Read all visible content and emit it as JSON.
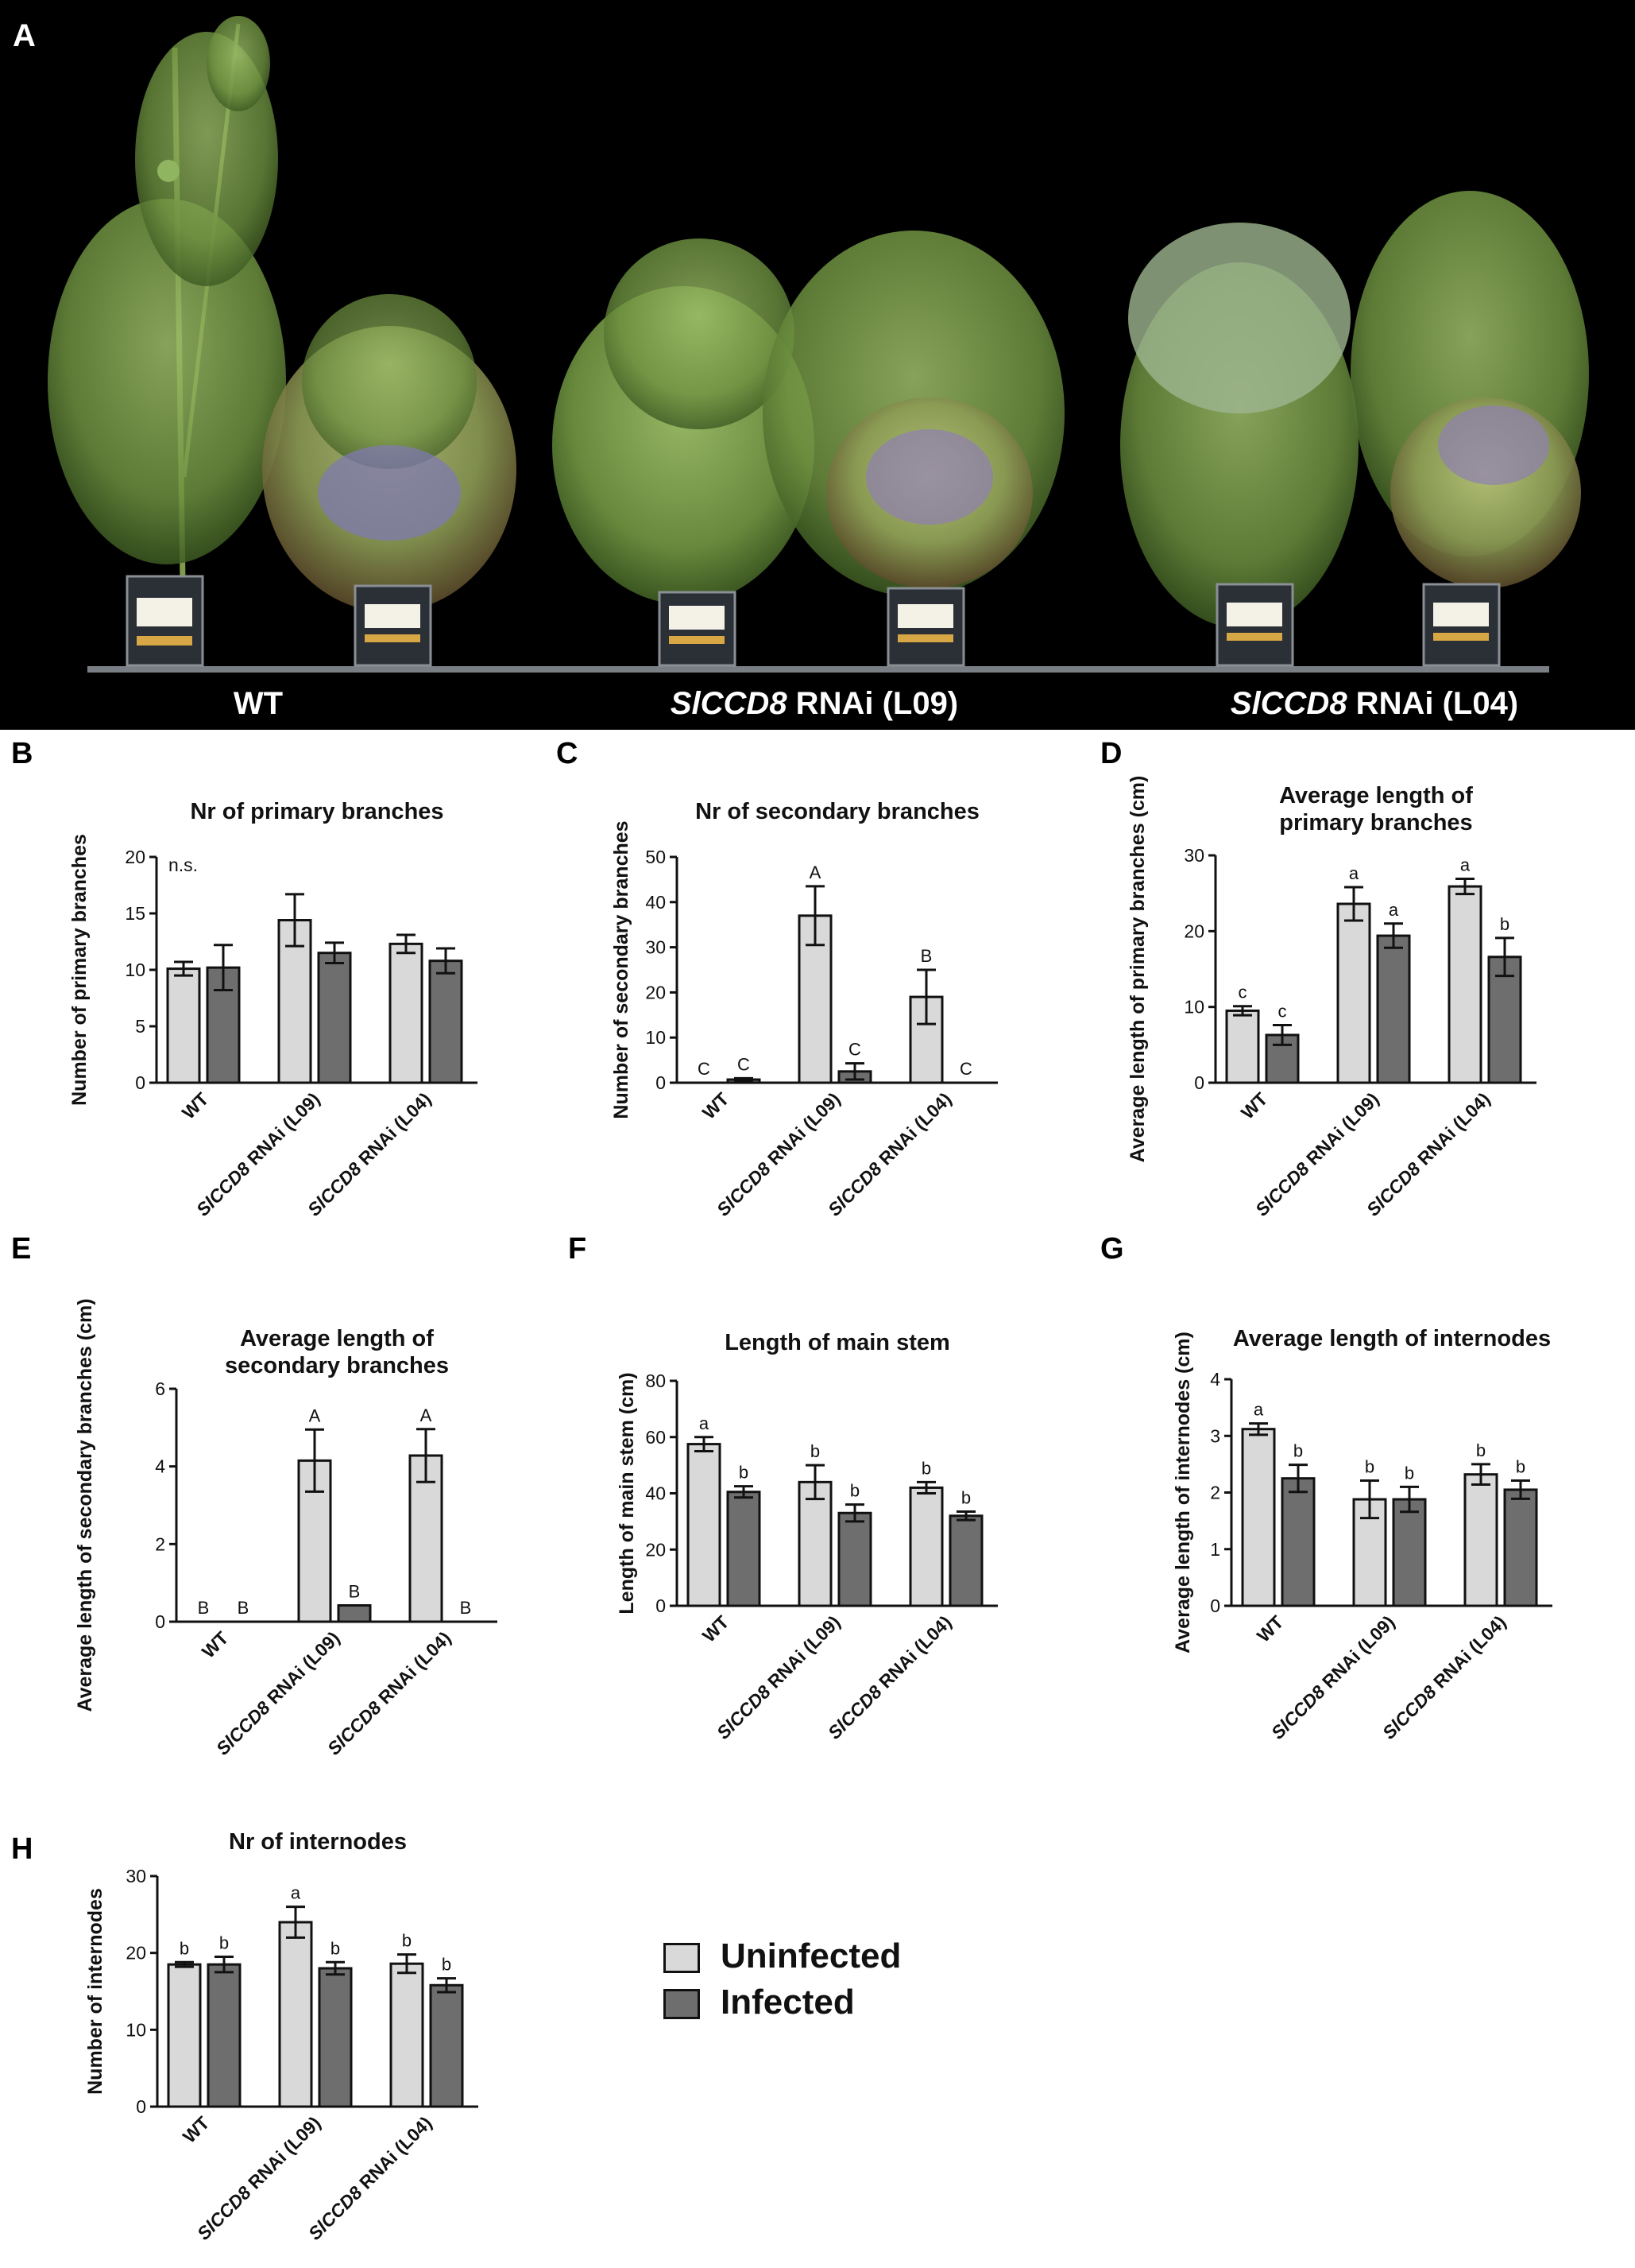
{
  "photo": {
    "label": "A",
    "groups": [
      {
        "name": "WT",
        "italic": "",
        "rest": "WT"
      },
      {
        "name": "SlCCD8 RNAi (L09)",
        "italic": "SlCCD8",
        "rest": " RNAi (L09)"
      },
      {
        "name": "SlCCD8 RNAi (L04)",
        "italic": "SlCCD8",
        "rest": " RNAi (L04)"
      }
    ]
  },
  "legend": {
    "items": [
      {
        "label": "Uninfected",
        "color": "#d9d9d9"
      },
      {
        "label": "Infected",
        "color": "#6e6e6e"
      }
    ]
  },
  "colors": {
    "uninfected": "#d9d9d9",
    "infected": "#6e6e6e",
    "axis": "#111111",
    "background": "#000000"
  },
  "chart_data": [
    {
      "id": "B",
      "letter": "B",
      "type": "bar",
      "title": [
        "Nr of primary branches"
      ],
      "ylabel": "Number of primary branches",
      "categories": [
        "WT",
        "SlCCD8 RNAi (L09)",
        "SlCCD8 RNAi (L04)"
      ],
      "ylim": [
        0,
        20
      ],
      "yticks": [
        0,
        5,
        10,
        15,
        20
      ],
      "note": "n.s.",
      "series": [
        {
          "name": "Uninfected",
          "values": [
            10.1,
            14.4,
            12.3
          ],
          "errors": [
            0.6,
            2.3,
            0.8
          ],
          "sig": [
            "",
            "",
            ""
          ]
        },
        {
          "name": "Infected",
          "values": [
            10.2,
            11.5,
            10.8
          ],
          "errors": [
            2.0,
            0.9,
            1.1
          ],
          "sig": [
            "",
            "",
            ""
          ]
        }
      ]
    },
    {
      "id": "C",
      "letter": "C",
      "type": "bar",
      "title": [
        "Nr of secondary branches"
      ],
      "ylabel": "Number of secondary branches",
      "categories": [
        "WT",
        "SlCCD8 RNAi (L09)",
        "SlCCD8 RNAi (L04)"
      ],
      "ylim": [
        0,
        50
      ],
      "yticks": [
        0,
        10,
        20,
        30,
        40,
        50
      ],
      "series": [
        {
          "name": "Uninfected",
          "values": [
            0,
            37,
            19
          ],
          "errors": [
            0,
            6.5,
            6.0
          ],
          "sig": [
            "C",
            "A",
            "B"
          ]
        },
        {
          "name": "Infected",
          "values": [
            0.7,
            2.5,
            0
          ],
          "errors": [
            0.3,
            1.8,
            0
          ],
          "sig": [
            "C",
            "C",
            "C"
          ]
        }
      ]
    },
    {
      "id": "D",
      "letter": "D",
      "type": "bar",
      "title": [
        "Average length of",
        "primary branches"
      ],
      "ylabel": "Average length of primary branches (cm)",
      "categories": [
        "WT",
        "SlCCD8 RNAi (L09)",
        "SlCCD8 RNAi (L04)"
      ],
      "ylim": [
        0,
        30
      ],
      "yticks": [
        0,
        10,
        20,
        30
      ],
      "series": [
        {
          "name": "Uninfected",
          "values": [
            9.5,
            23.6,
            25.9
          ],
          "errors": [
            0.6,
            2.2,
            1.0
          ],
          "sig": [
            "c",
            "a",
            "a"
          ]
        },
        {
          "name": "Infected",
          "values": [
            6.3,
            19.4,
            16.6
          ],
          "errors": [
            1.3,
            1.6,
            2.5
          ],
          "sig": [
            "c",
            "a",
            "b"
          ]
        }
      ]
    },
    {
      "id": "E",
      "letter": "E",
      "type": "bar",
      "title": [
        "Average length of",
        "secondary branches"
      ],
      "ylabel": "Average length of secondary branches (cm)",
      "categories": [
        "WT",
        "SlCCD8 RNAi (L09)",
        "SlCCD8 RNAi (L04)"
      ],
      "ylim": [
        0,
        6
      ],
      "yticks": [
        0,
        2,
        4,
        6
      ],
      "series": [
        {
          "name": "Uninfected",
          "values": [
            0,
            4.15,
            4.28
          ],
          "errors": [
            0,
            0.8,
            0.68
          ],
          "sig": [
            "B",
            "A",
            "A"
          ]
        },
        {
          "name": "Infected",
          "values": [
            0,
            0.42,
            0
          ],
          "errors": [
            0,
            0,
            0
          ],
          "sig": [
            "B",
            "B",
            "B"
          ]
        }
      ]
    },
    {
      "id": "F",
      "letter": "F",
      "type": "bar",
      "title": [
        "Length of main stem"
      ],
      "ylabel": "Length of main stem (cm)",
      "categories": [
        "WT",
        "SlCCD8 RNAi (L09)",
        "SlCCD8 RNAi (L04)"
      ],
      "ylim": [
        0,
        80
      ],
      "yticks": [
        0,
        20,
        40,
        60,
        80
      ],
      "series": [
        {
          "name": "Uninfected",
          "values": [
            57.5,
            44,
            42
          ],
          "errors": [
            2.5,
            6,
            2
          ],
          "sig": [
            "a",
            "b",
            "b"
          ]
        },
        {
          "name": "Infected",
          "values": [
            40.5,
            33,
            32
          ],
          "errors": [
            2,
            3,
            1.5
          ],
          "sig": [
            "b",
            "b",
            "b"
          ]
        }
      ]
    },
    {
      "id": "G",
      "letter": "G",
      "type": "bar",
      "title": [
        "Average length of internodes"
      ],
      "ylabel": "Average length of internodes (cm)",
      "categories": [
        "WT",
        "SlCCD8 RNAi (L09)",
        "SlCCD8 RNAi (L04)"
      ],
      "ylim": [
        0,
        4
      ],
      "yticks": [
        0,
        1,
        2,
        3,
        4
      ],
      "series": [
        {
          "name": "Uninfected",
          "values": [
            3.12,
            1.88,
            2.32
          ],
          "errors": [
            0.1,
            0.33,
            0.18
          ],
          "sig": [
            "a",
            "b",
            "b"
          ]
        },
        {
          "name": "Infected",
          "values": [
            2.25,
            1.88,
            2.05
          ],
          "errors": [
            0.24,
            0.22,
            0.16
          ],
          "sig": [
            "b",
            "b",
            "b"
          ]
        }
      ]
    },
    {
      "id": "H",
      "letter": "H",
      "type": "bar",
      "title": [
        "Nr of internodes"
      ],
      "ylabel": "Number of internodes",
      "categories": [
        "WT",
        "SlCCD8 RNAi (L09)",
        "SlCCD8 RNAi (L04)"
      ],
      "ylim": [
        0,
        30
      ],
      "yticks": [
        0,
        10,
        20,
        30
      ],
      "series": [
        {
          "name": "Uninfected",
          "values": [
            18.5,
            24,
            18.6
          ],
          "errors": [
            0.3,
            2,
            1.2
          ],
          "sig": [
            "b",
            "a",
            "b"
          ]
        },
        {
          "name": "Infected",
          "values": [
            18.5,
            18,
            15.8
          ],
          "errors": [
            1.0,
            0.8,
            0.9
          ],
          "sig": [
            "b",
            "b",
            "b"
          ]
        }
      ]
    }
  ]
}
